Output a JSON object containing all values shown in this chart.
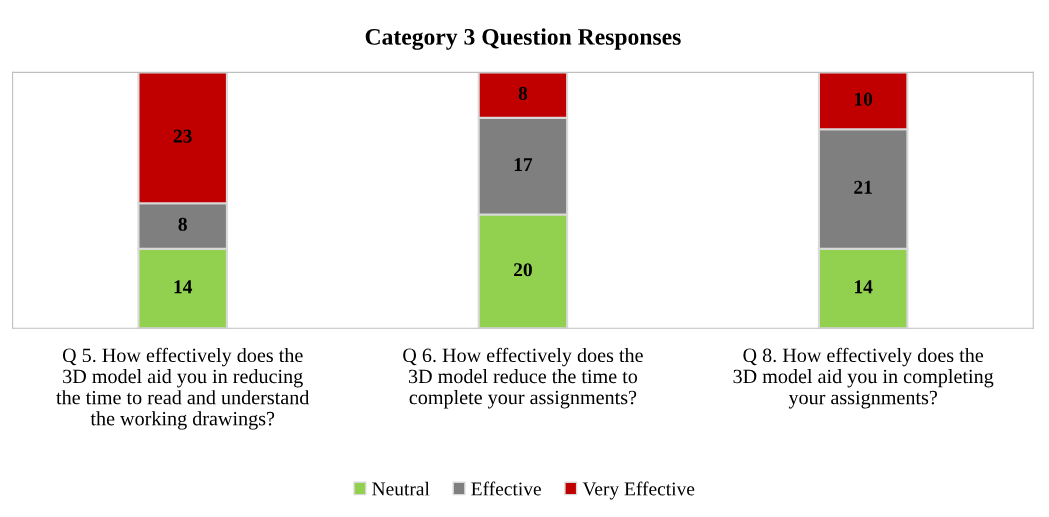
{
  "chart_data": {
    "type": "bar",
    "title": "Category 3 Question Responses",
    "categories": [
      "Q 5. How effectively does the\n3D model aid you in reducing\nthe time to read and understand\nthe working drawings?",
      "Q 6. How effectively does the\n3D model reduce the time to\ncomplete your assignments?",
      "Q 8. How effectively does the\n3D model aid you in completing\nyour assignments?"
    ],
    "stacked": true,
    "data_labels": true,
    "legend": "bottom",
    "grid": false,
    "series": [
      {
        "name": "Neutral",
        "color": "#92d050",
        "values": [
          14,
          20,
          14
        ]
      },
      {
        "name": "Effective",
        "color": "#7f7f7f",
        "values": [
          8,
          17,
          21
        ]
      },
      {
        "name": "Very Effective",
        "color": "#c00000",
        "values": [
          23,
          8,
          10
        ]
      }
    ]
  }
}
